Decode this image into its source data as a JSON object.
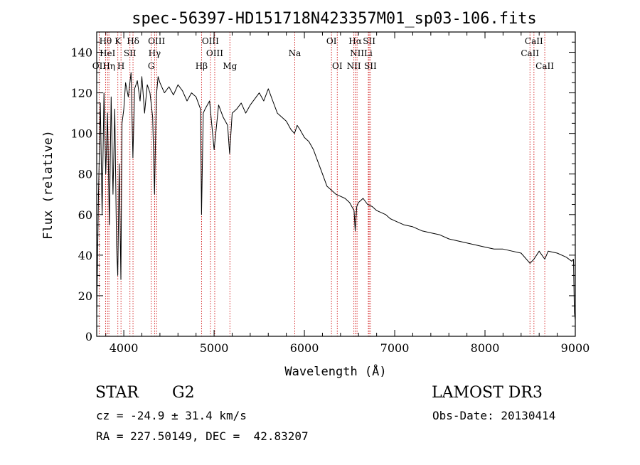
{
  "colors": {
    "ink": "#000000",
    "line_marker": "#cc0000",
    "background": "#ffffff"
  },
  "chart_data": {
    "type": "line",
    "title": "spec-56397-HD151718N423357M01_sp03-106.fits",
    "xlabel": "Wavelength (Å)",
    "ylabel": "Flux (relative)",
    "xlim": [
      3700,
      9000
    ],
    "ylim": [
      0,
      150
    ],
    "x_ticks": [
      4000,
      5000,
      6000,
      7000,
      8000,
      9000
    ],
    "y_ticks": [
      0,
      20,
      40,
      60,
      80,
      100,
      120,
      140
    ],
    "grid": false,
    "series": [
      {
        "name": "flux",
        "x": [
          3700,
          3720,
          3740,
          3760,
          3780,
          3800,
          3820,
          3840,
          3860,
          3880,
          3900,
          3920,
          3933,
          3950,
          3968,
          3980,
          4000,
          4020,
          4050,
          4080,
          4101,
          4120,
          4150,
          4180,
          4200,
          4230,
          4260,
          4290,
          4320,
          4340,
          4360,
          4380,
          4400,
          4450,
          4500,
          4550,
          4600,
          4650,
          4700,
          4750,
          4800,
          4850,
          4861,
          4880,
          4900,
          4950,
          5000,
          5050,
          5100,
          5150,
          5172,
          5200,
          5250,
          5300,
          5350,
          5400,
          5450,
          5500,
          5550,
          5600,
          5650,
          5700,
          5750,
          5800,
          5850,
          5890,
          5920,
          5950,
          6000,
          6050,
          6100,
          6150,
          6200,
          6250,
          6300,
          6350,
          6400,
          6450,
          6500,
          6550,
          6563,
          6580,
          6600,
          6650,
          6700,
          6750,
          6800,
          6850,
          6900,
          6950,
          7000,
          7100,
          7200,
          7300,
          7400,
          7500,
          7600,
          7700,
          7800,
          7900,
          8000,
          8100,
          8200,
          8300,
          8400,
          8498,
          8542,
          8600,
          8662,
          8700,
          8800,
          8900,
          8960,
          8980,
          8990,
          9000
        ],
        "y": [
          10,
          70,
          115,
          60,
          120,
          80,
          110,
          55,
          118,
          70,
          112,
          45,
          30,
          85,
          28,
          105,
          112,
          125,
          118,
          130,
          88,
          122,
          126,
          116,
          128,
          110,
          124,
          120,
          108,
          70,
          118,
          128,
          125,
          120,
          123,
          119,
          124,
          121,
          116,
          120,
          118,
          112,
          60,
          110,
          112,
          116,
          92,
          114,
          108,
          104,
          90,
          110,
          112,
          115,
          110,
          114,
          117,
          120,
          116,
          122,
          116,
          110,
          108,
          106,
          102,
          100,
          104,
          102,
          98,
          96,
          92,
          86,
          80,
          74,
          72,
          70,
          69,
          68,
          66,
          62,
          52,
          64,
          66,
          68,
          65,
          64,
          62,
          61,
          60,
          58,
          57,
          55,
          54,
          52,
          51,
          50,
          48,
          47,
          46,
          45,
          44,
          43,
          43,
          42,
          41,
          36,
          38,
          42,
          38,
          42,
          41,
          39,
          37,
          38,
          12,
          8
        ]
      }
    ],
    "line_markers": [
      {
        "label": "Hθ",
        "x": 3798,
        "row": 1
      },
      {
        "label": "K",
        "x": 3934,
        "row": 1
      },
      {
        "label": "Hδ",
        "x": 4102,
        "row": 1
      },
      {
        "label": "OIII",
        "x": 4363,
        "row": 1
      },
      {
        "label": "OIII",
        "x": 4959,
        "row": 1
      },
      {
        "label": "OI",
        "x": 6300,
        "row": 1
      },
      {
        "label": "Hα",
        "x": 6563,
        "row": 1
      },
      {
        "label": "SII",
        "x": 6717,
        "row": 1
      },
      {
        "label": "CaII",
        "x": 8542,
        "row": 1
      },
      {
        "label": "OII",
        "x": 3727,
        "row": 3
      },
      {
        "label": "HeI",
        "x": 3820,
        "row": 2
      },
      {
        "label": "Hη",
        "x": 3835,
        "row": 3
      },
      {
        "label": "H",
        "x": 3969,
        "row": 3
      },
      {
        "label": "SII",
        "x": 4068,
        "row": 2
      },
      {
        "label": "Hγ",
        "x": 4341,
        "row": 2
      },
      {
        "label": "G",
        "x": 4304,
        "row": 3
      },
      {
        "label": "Hβ",
        "x": 4861,
        "row": 3
      },
      {
        "label": "OIII",
        "x": 5007,
        "row": 2
      },
      {
        "label": "Mg",
        "x": 5175,
        "row": 3
      },
      {
        "label": "Na",
        "x": 5893,
        "row": 2
      },
      {
        "label": "OI",
        "x": 6364,
        "row": 3
      },
      {
        "label": "NII",
        "x": 6583,
        "row": 2
      },
      {
        "label": "NII",
        "x": 6548,
        "row": 3
      },
      {
        "label": "Li",
        "x": 6708,
        "row": 2
      },
      {
        "label": "SII",
        "x": 6731,
        "row": 3
      },
      {
        "label": "CaII",
        "x": 8498,
        "row": 2
      },
      {
        "label": "CaII",
        "x": 8662,
        "row": 3
      }
    ]
  },
  "info": {
    "object_class": "STAR",
    "subclass": "G2",
    "survey": "LAMOST DR3",
    "redshift": "cz = -24.9 ± 31.4 km/s",
    "obs_date": "Obs-Date: 20130414",
    "coords": "RA = 227.50149, DEC =  42.83207"
  }
}
